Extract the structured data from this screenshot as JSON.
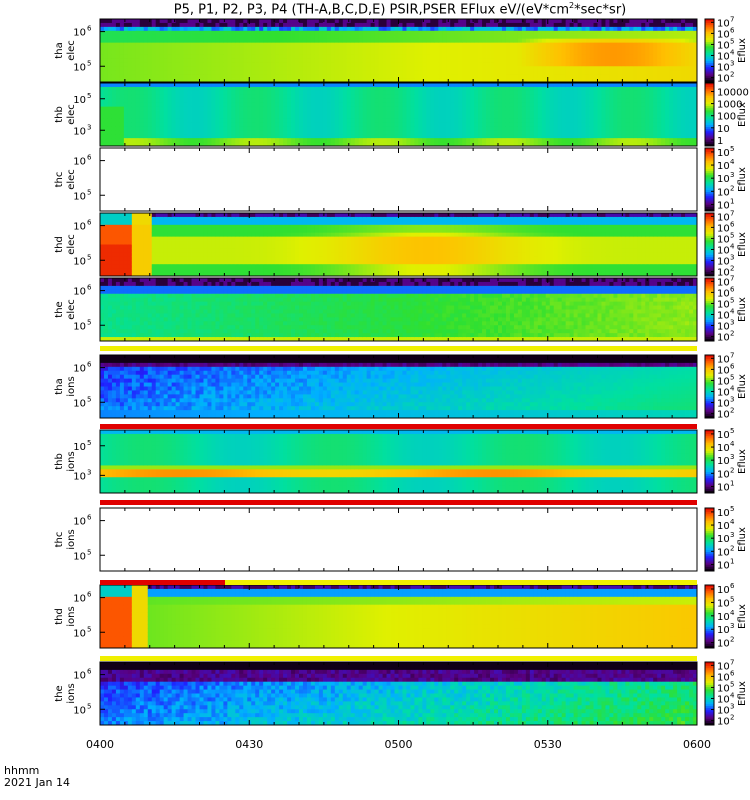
{
  "chart_data": {
    "type": "heatmap",
    "title": "P5, P1, P2, P3, P4 (TH-A,B,C,D,E) PSIR,PSER EFlux eV/(eV*cm2*sec*sr)",
    "title_parts": {
      "before": "P5, P1, P2, P3, P4 (TH-A,B,C,D,E) PSIR,PSER EFlux eV/(eV*cm",
      "exp": "2",
      "middle": "*sec*sr)"
    },
    "x_axis": {
      "label_line1": "hhmm",
      "label_line2": "2021 Jan 14",
      "ticks": [
        "0400",
        "0430",
        "0500",
        "0530",
        "0600"
      ],
      "range": [
        "04:00",
        "06:00"
      ]
    },
    "colorbar_label": "Eflux",
    "panels": [
      {
        "name": "tha elec",
        "yl1": "tha",
        "yl2": "elec",
        "yticks": [
          "10",
          "10"
        ],
        "yexp": [
          "6",
          "5"
        ],
        "ytick_v": [
          0.2,
          0.75
        ],
        "cbar": {
          "ticks": [
            "10",
            "10",
            "10",
            "10",
            "10",
            "10"
          ],
          "exps": [
            "7",
            "6",
            "5",
            "4",
            "3",
            "2"
          ],
          "log": [
            7,
            6,
            5,
            4,
            3,
            2
          ],
          "range": [
            1.6,
            7.3
          ]
        },
        "profile": "tha_e"
      },
      {
        "name": "thb elec",
        "yl1": "thb",
        "yl2": "elec",
        "yticks": [
          "10",
          "10"
        ],
        "yexp": [
          "5",
          "3"
        ],
        "ytick_v": [
          0.25,
          0.75
        ],
        "cbar": {
          "ticks": [
            "10000",
            "1000",
            "100",
            "10",
            "1"
          ],
          "exps": [
            "",
            "",
            "",
            "",
            ""
          ],
          "log": [
            4,
            3,
            2,
            1,
            0
          ],
          "range": [
            -0.5,
            4.7
          ]
        },
        "profile": "thb_e"
      },
      {
        "name": "thc elec",
        "yl1": "thc",
        "yl2": "elec",
        "yticks": [
          "10",
          "10"
        ],
        "yexp": [
          "6",
          "5"
        ],
        "ytick_v": [
          0.2,
          0.75
        ],
        "cbar": {
          "ticks": [
            "10",
            "10",
            "10",
            "10",
            "10"
          ],
          "exps": [
            "5",
            "4",
            "3",
            "2",
            "1"
          ],
          "log": [
            5,
            4,
            3,
            2,
            1
          ],
          "range": [
            0.5,
            5.3
          ]
        },
        "profile": "empty"
      },
      {
        "name": "thd elec",
        "yl1": "thd",
        "yl2": "elec",
        "yticks": [
          "10",
          "10"
        ],
        "yexp": [
          "6",
          "5"
        ],
        "ytick_v": [
          0.2,
          0.75
        ],
        "cbar": {
          "ticks": [
            "10",
            "10",
            "10",
            "10",
            "10",
            "10"
          ],
          "exps": [
            "7",
            "6",
            "5",
            "4",
            "3",
            "2"
          ],
          "log": [
            7,
            6,
            5,
            4,
            3,
            2
          ],
          "range": [
            1.6,
            7.3
          ]
        },
        "profile": "thd_e"
      },
      {
        "name": "the elec",
        "yl1": "the",
        "yl2": "elec",
        "yticks": [
          "10",
          "10"
        ],
        "yexp": [
          "6",
          "5"
        ],
        "ytick_v": [
          0.2,
          0.75
        ],
        "cbar": {
          "ticks": [
            "10",
            "10",
            "10",
            "10",
            "10",
            "10"
          ],
          "exps": [
            "7",
            "6",
            "5",
            "4",
            "3",
            "2"
          ],
          "log": [
            7,
            6,
            5,
            4,
            3,
            2
          ],
          "range": [
            1.6,
            7.3
          ]
        },
        "profile": "the_e"
      },
      {
        "name": "tha ions",
        "yl1": "tha",
        "yl2": "ions",
        "yticks": [
          "10",
          "10"
        ],
        "yexp": [
          "6",
          "5"
        ],
        "ytick_v": [
          0.2,
          0.75
        ],
        "cbar": {
          "ticks": [
            "10",
            "10",
            "10",
            "10",
            "10",
            "10"
          ],
          "exps": [
            "7",
            "6",
            "5",
            "4",
            "3",
            "2"
          ],
          "log": [
            7,
            6,
            5,
            4,
            3,
            2
          ],
          "range": [
            1.6,
            7.3
          ]
        },
        "profile": "tha_i"
      },
      {
        "name": "thb ions",
        "yl1": "thb",
        "yl2": "ions",
        "yticks": [
          "10",
          "10"
        ],
        "yexp": [
          "5",
          "3"
        ],
        "ytick_v": [
          0.25,
          0.72
        ],
        "cbar": {
          "ticks": [
            "10",
            "10",
            "10",
            "10",
            "10"
          ],
          "exps": [
            "5",
            "4",
            "3",
            "2",
            "1"
          ],
          "log": [
            5,
            4,
            3,
            2,
            1
          ],
          "range": [
            0.5,
            5.3
          ]
        },
        "profile": "thb_i"
      },
      {
        "name": "thc ions",
        "yl1": "thc",
        "yl2": "ions",
        "yticks": [
          "10",
          "10"
        ],
        "yexp": [
          "6",
          "5"
        ],
        "ytick_v": [
          0.2,
          0.75
        ],
        "cbar": {
          "ticks": [
            "10",
            "10",
            "10",
            "10",
            "10"
          ],
          "exps": [
            "5",
            "4",
            "3",
            "2",
            "1"
          ],
          "log": [
            5,
            4,
            3,
            2,
            1
          ],
          "range": [
            0.5,
            5.3
          ]
        },
        "profile": "empty"
      },
      {
        "name": "thd ions",
        "yl1": "thd",
        "yl2": "ions",
        "yticks": [
          "10",
          "10"
        ],
        "yexp": [
          "6",
          "5"
        ],
        "ytick_v": [
          0.2,
          0.75
        ],
        "cbar": {
          "ticks": [
            "10",
            "10",
            "10",
            "10",
            "10"
          ],
          "exps": [
            "6",
            "5",
            "4",
            "3",
            "2"
          ],
          "log": [
            6,
            5,
            4,
            3,
            2
          ],
          "range": [
            1.6,
            6.3
          ]
        },
        "profile": "thd_i"
      },
      {
        "name": "the ions",
        "yl1": "the",
        "yl2": "ions",
        "yticks": [
          "10",
          "10"
        ],
        "yexp": [
          "6",
          "5"
        ],
        "ytick_v": [
          0.2,
          0.75
        ],
        "cbar": {
          "ticks": [
            "10",
            "10",
            "10",
            "10",
            "10",
            "10"
          ],
          "exps": [
            "7",
            "6",
            "5",
            "4",
            "3",
            "2"
          ],
          "log": [
            7,
            6,
            5,
            4,
            3,
            2
          ],
          "range": [
            1.6,
            7.3
          ]
        },
        "profile": "the_i"
      }
    ],
    "colormap": [
      "#000000",
      "#5a0080",
      "#2020ff",
      "#00b0ff",
      "#00e0a0",
      "#30e030",
      "#e0f000",
      "#ffc000",
      "#ff6000",
      "#e00000"
    ]
  }
}
